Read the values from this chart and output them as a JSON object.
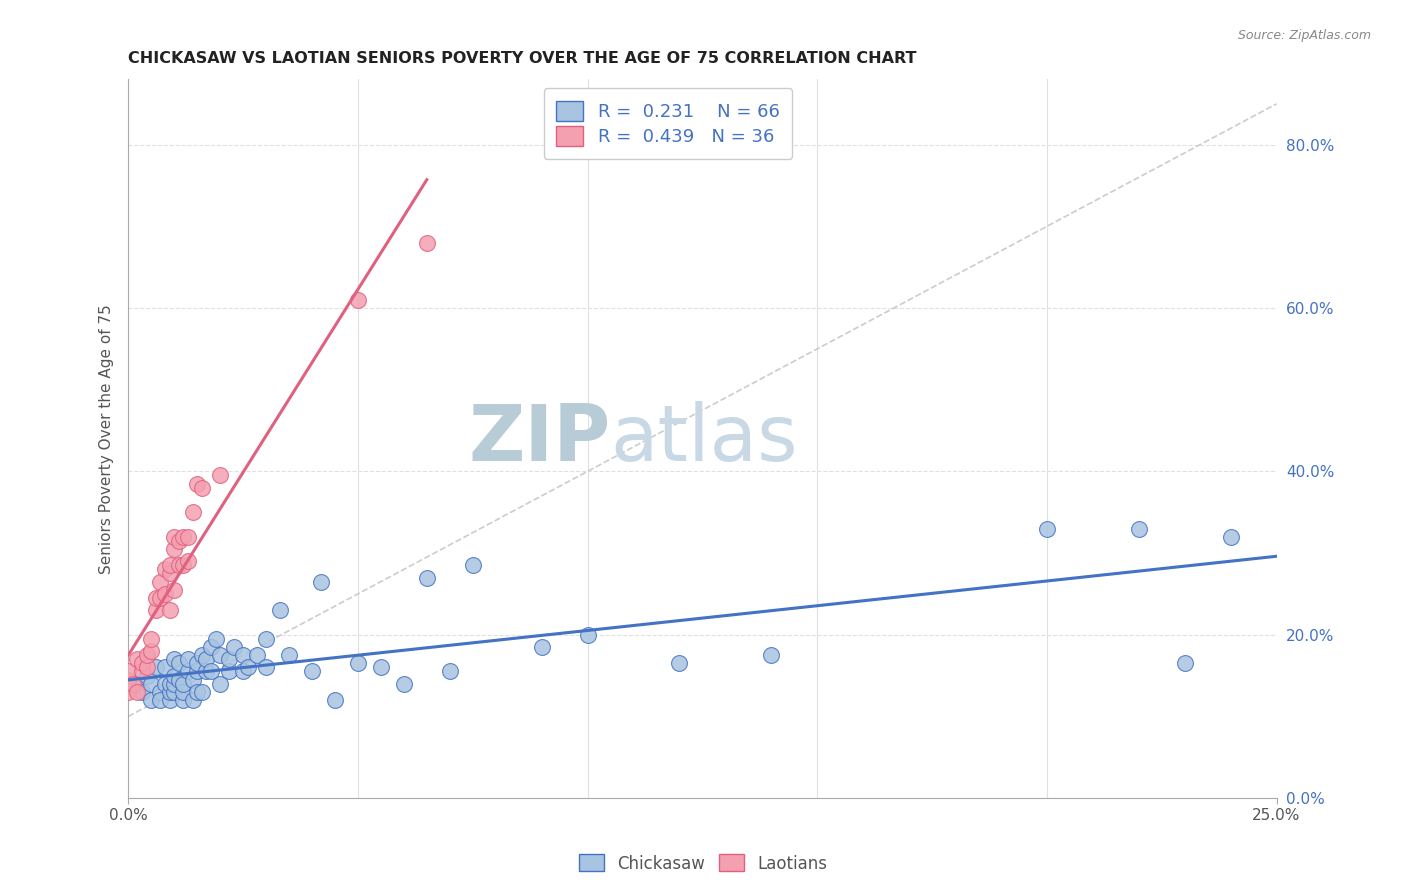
{
  "title": "CHICKASAW VS LAOTIAN SENIORS POVERTY OVER THE AGE OF 75 CORRELATION CHART",
  "source_text": "Source: ZipAtlas.com",
  "ylabel": "Seniors Poverty Over the Age of 75",
  "right_yticks": [
    0.0,
    0.2,
    0.4,
    0.6,
    0.8
  ],
  "right_yticklabels": [
    "0.0%",
    "20.0%",
    "40.0%",
    "60.0%",
    "80.0%"
  ],
  "xlim": [
    0.0,
    0.25
  ],
  "ylim": [
    0.0,
    0.88
  ],
  "chickasaw_R": 0.231,
  "chickasaw_N": 66,
  "laotian_R": 0.439,
  "laotian_N": 36,
  "chickasaw_color": "#a8c4e0",
  "laotian_color": "#f4a0b0",
  "chickasaw_line_color": "#4472c4",
  "laotian_line_color": "#e06080",
  "diagonal_color": "#cccccc",
  "watermark_color": "#ccd9e8",
  "stat_color": "#4472c4",
  "title_color": "#222222",
  "label_color": "#555555",
  "grid_color": "#e0e0e0",
  "chickasaw_x": [
    0.002,
    0.003,
    0.004,
    0.005,
    0.005,
    0.006,
    0.007,
    0.007,
    0.008,
    0.008,
    0.009,
    0.009,
    0.009,
    0.01,
    0.01,
    0.01,
    0.01,
    0.011,
    0.011,
    0.012,
    0.012,
    0.012,
    0.013,
    0.013,
    0.014,
    0.014,
    0.015,
    0.015,
    0.015,
    0.016,
    0.016,
    0.017,
    0.017,
    0.018,
    0.018,
    0.019,
    0.02,
    0.02,
    0.022,
    0.022,
    0.023,
    0.025,
    0.025,
    0.026,
    0.028,
    0.03,
    0.03,
    0.033,
    0.035,
    0.04,
    0.042,
    0.045,
    0.05,
    0.055,
    0.06,
    0.065,
    0.07,
    0.075,
    0.09,
    0.1,
    0.12,
    0.14,
    0.2,
    0.22,
    0.23,
    0.24
  ],
  "chickasaw_y": [
    0.14,
    0.13,
    0.15,
    0.12,
    0.14,
    0.16,
    0.13,
    0.12,
    0.14,
    0.16,
    0.12,
    0.13,
    0.14,
    0.13,
    0.14,
    0.15,
    0.17,
    0.145,
    0.165,
    0.12,
    0.13,
    0.14,
    0.155,
    0.17,
    0.12,
    0.145,
    0.13,
    0.155,
    0.165,
    0.13,
    0.175,
    0.155,
    0.17,
    0.155,
    0.185,
    0.195,
    0.14,
    0.175,
    0.155,
    0.17,
    0.185,
    0.155,
    0.175,
    0.16,
    0.175,
    0.16,
    0.195,
    0.23,
    0.175,
    0.155,
    0.265,
    0.12,
    0.165,
    0.16,
    0.14,
    0.27,
    0.155,
    0.285,
    0.185,
    0.2,
    0.165,
    0.175,
    0.33,
    0.33,
    0.165,
    0.32
  ],
  "laotian_x": [
    0.0,
    0.0,
    0.0,
    0.001,
    0.002,
    0.002,
    0.003,
    0.003,
    0.004,
    0.004,
    0.005,
    0.005,
    0.006,
    0.006,
    0.007,
    0.007,
    0.008,
    0.008,
    0.009,
    0.009,
    0.009,
    0.01,
    0.01,
    0.01,
    0.011,
    0.011,
    0.012,
    0.012,
    0.013,
    0.013,
    0.014,
    0.015,
    0.016,
    0.02,
    0.05,
    0.065
  ],
  "laotian_y": [
    0.13,
    0.145,
    0.155,
    0.14,
    0.13,
    0.17,
    0.155,
    0.165,
    0.16,
    0.175,
    0.18,
    0.195,
    0.23,
    0.245,
    0.245,
    0.265,
    0.25,
    0.28,
    0.23,
    0.275,
    0.285,
    0.255,
    0.305,
    0.32,
    0.285,
    0.315,
    0.285,
    0.32,
    0.29,
    0.32,
    0.35,
    0.385,
    0.38,
    0.395,
    0.61,
    0.68
  ]
}
